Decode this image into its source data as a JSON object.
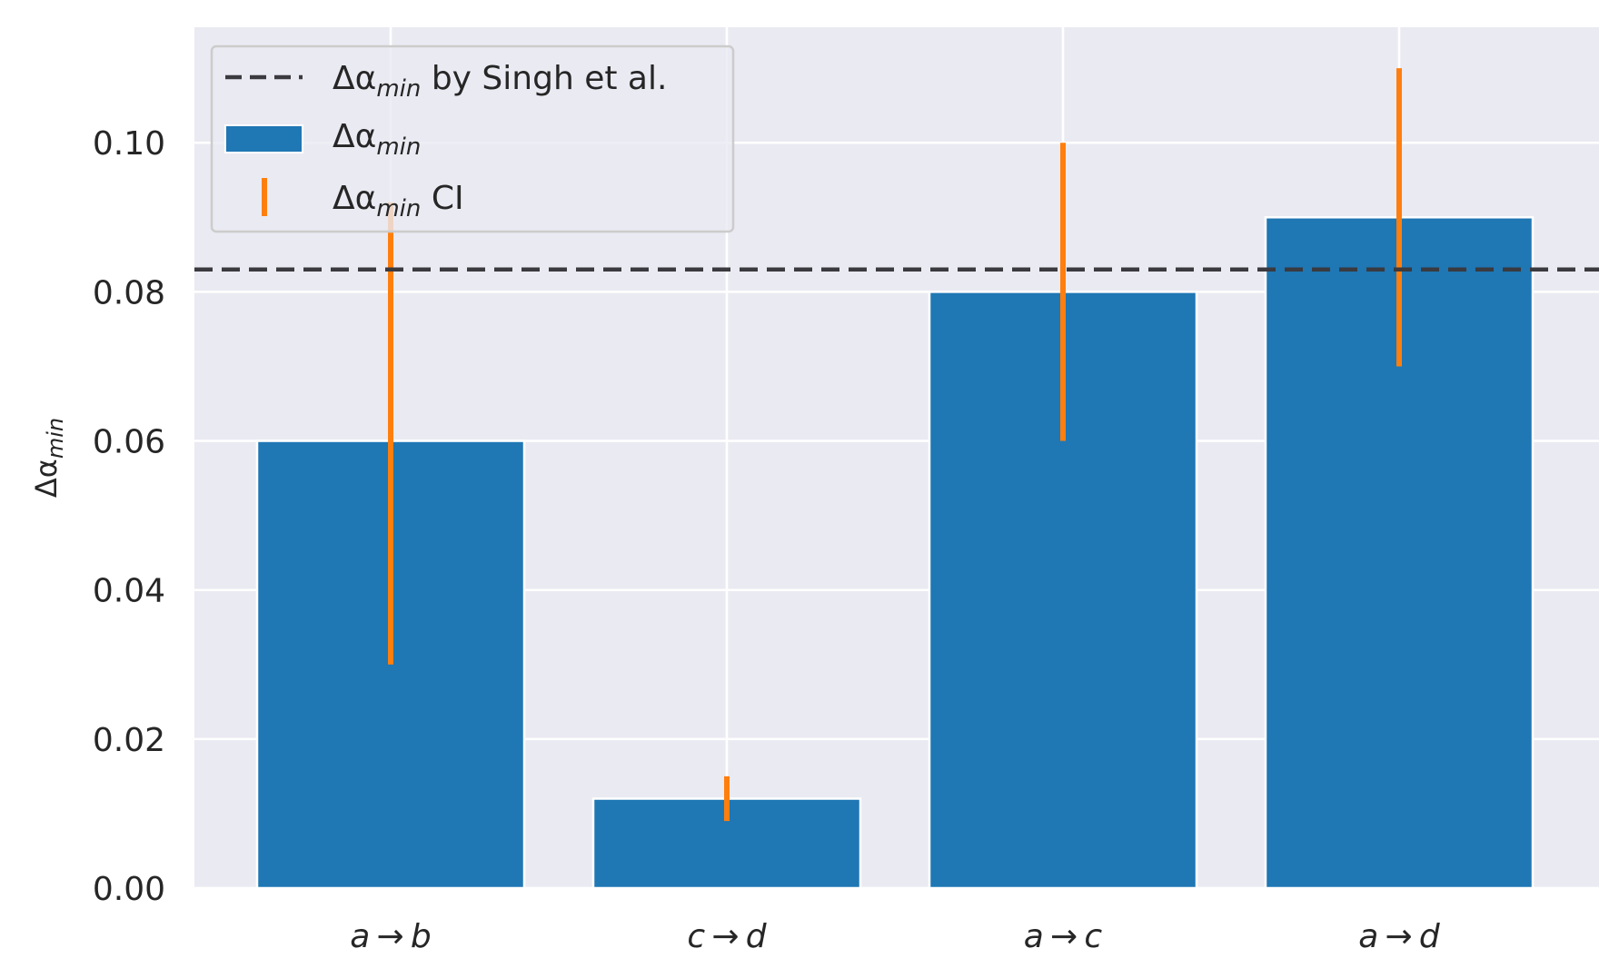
{
  "chart_data": {
    "type": "bar",
    "categories": [
      "a → b",
      "c → d",
      "a → c",
      "a → d"
    ],
    "series": [
      {
        "name": "Δα",
        "name_sub": "min",
        "values": [
          0.06,
          0.012,
          0.08,
          0.09
        ],
        "ci_low": [
          0.03,
          0.009,
          0.06,
          0.07
        ],
        "ci_high": [
          0.092,
          0.015,
          0.1,
          0.11
        ],
        "ci_name": "Δα",
        "ci_name_sub": "min",
        "ci_name_suffix": " CI"
      }
    ],
    "reference_line": {
      "name": "Δα",
      "name_sub": "min",
      "name_suffix": " by Singh et al.",
      "value": 0.083
    },
    "ylabel": "Δα",
    "ylabel_sub": "min",
    "ylim": [
      0,
      0.1155
    ],
    "yticks": [
      "0.00",
      "0.02",
      "0.04",
      "0.06",
      "0.08",
      "0.10"
    ],
    "ytick_values": [
      0,
      0.02,
      0.04,
      0.06,
      0.08,
      0.1
    ],
    "grid": true,
    "legend_position": "top-left",
    "colors": {
      "bar": "#1f77b4",
      "ci": "#ff7f0e",
      "reference": "#3a3a3f",
      "background": "#eaeaf2",
      "grid": "#ffffff"
    }
  }
}
